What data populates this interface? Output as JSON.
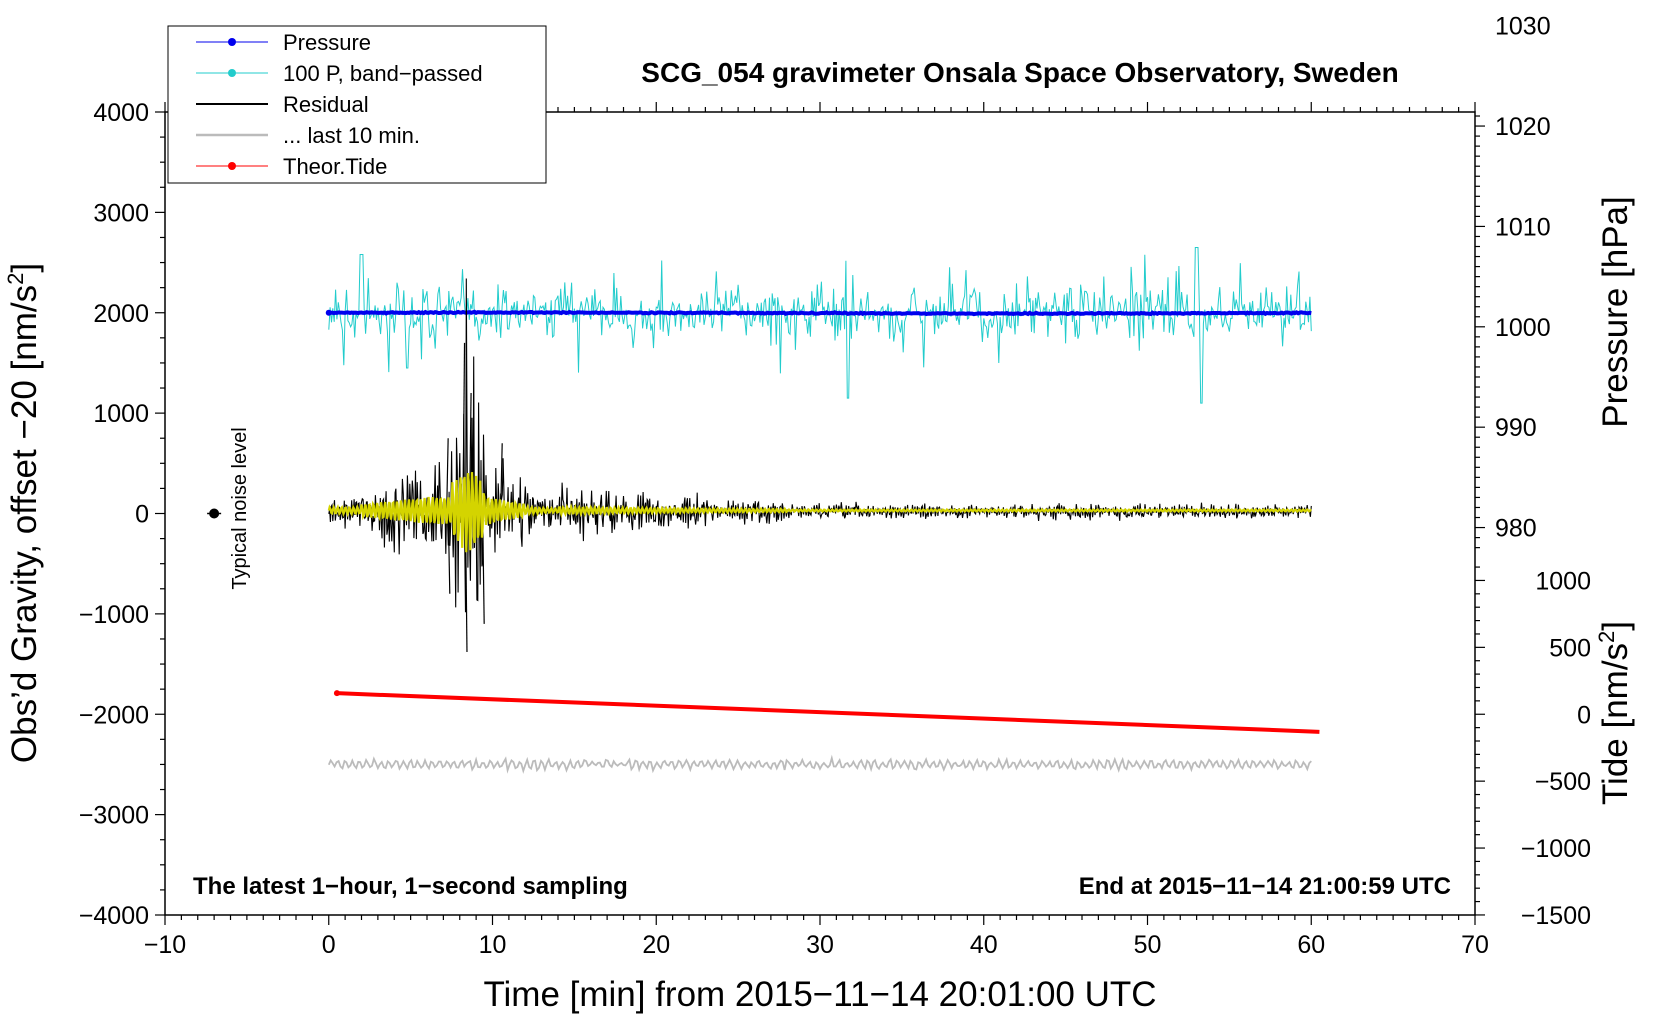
{
  "chart_data": {
    "type": "line",
    "title": "SCG_054 gravimeter Onsala Space Observatory, Sweden",
    "xlabel": "Time [min] from 2015−11−14 20:01:00 UTC",
    "ylabel_left_main": "Obs’d Gravity, offset −20 [nm/s",
    "ylabel_left_sup": "2",
    "ylabel_left_close": "]",
    "ylabel_right_pressure": "Pressure [hPa]",
    "ylabel_right_tide_main": "Tide [nm/s",
    "ylabel_right_tide_sup": "2",
    "ylabel_right_tide_close": "]",
    "xlim": [
      -10,
      70
    ],
    "ylim": [
      -4000,
      4000
    ],
    "x_ticks": [
      -10,
      0,
      10,
      20,
      30,
      40,
      50,
      60,
      70
    ],
    "x_tick_labels": [
      "−10",
      "0",
      "10",
      "20",
      "30",
      "40",
      "50",
      "60",
      "70"
    ],
    "y_ticks": [
      4000,
      3000,
      2000,
      1000,
      0,
      -1000,
      -2000,
      -3000,
      -4000
    ],
    "y_tick_labels": [
      "4000",
      "3000",
      "2000",
      "1000",
      "0",
      "−1000",
      "−2000",
      "−3000",
      "−4000"
    ],
    "pressure_axis": {
      "gravity_at_1000hPa": 1860,
      "gravity_per_hPa": 100,
      "ticks": [
        1030,
        1020,
        1010,
        1000,
        990,
        980
      ],
      "tick_labels": [
        "1030",
        "1020",
        "1010",
        "1000",
        "990",
        "980"
      ]
    },
    "tide_axis": {
      "gravity_at_0": -2000,
      "gravity_per_unit": 1.333,
      "ticks": [
        1000,
        500,
        0,
        -500,
        -1000,
        -1500
      ],
      "tick_labels": [
        "1000",
        "500",
        "0",
        "−500",
        "−1000",
        "−1500"
      ]
    },
    "series": [
      {
        "name": "Pressure",
        "color": "#0000ee",
        "description": "flat near 1001.4 hPa",
        "x": [
          0,
          10,
          20,
          30,
          40,
          50,
          60
        ],
        "values": [
          2000,
          2003,
          2000,
          1996,
          1992,
          1994,
          1998
        ]
      },
      {
        "name": "100 P, band−passed",
        "color": "#22cccc",
        "description": "oscillating around 2000 with amplitude ~200-800"
      },
      {
        "name": "Residual",
        "color": "#000000",
        "description": "seismic wave train, peak ~+1700 / -1400 near 8.5 min, decaying to ~±50 after 30 min"
      },
      {
        "name": "... last 10 min.",
        "color": "#bbbbbb",
        "description": "residual of previous period drawn at offset -2500"
      },
      {
        "name": "Theor.Tide",
        "color": "#ff0000",
        "x": [
          0.5,
          60.5
        ],
        "values": [
          -1790,
          -2175
        ]
      }
    ],
    "noise_marker": {
      "x": -7,
      "y": 0,
      "label": "Typical noise level"
    },
    "annotation_left": "The latest 1−hour, 1−second sampling",
    "annotation_right": "End at 2015−11−14 21:00:59 UTC",
    "legend": {
      "placement": "top-left",
      "entries": [
        {
          "label": "Pressure",
          "color": "#0000ee",
          "marker": true
        },
        {
          "label": "100 P, band−passed",
          "color": "#22cccc",
          "marker": true
        },
        {
          "label": "Residual",
          "color": "#000000",
          "marker": false
        },
        {
          "label": "... last 10 min.",
          "color": "#bbbbbb",
          "marker": false
        },
        {
          "label": "Theor.Tide",
          "color": "#ff0000",
          "marker": true
        }
      ]
    }
  }
}
